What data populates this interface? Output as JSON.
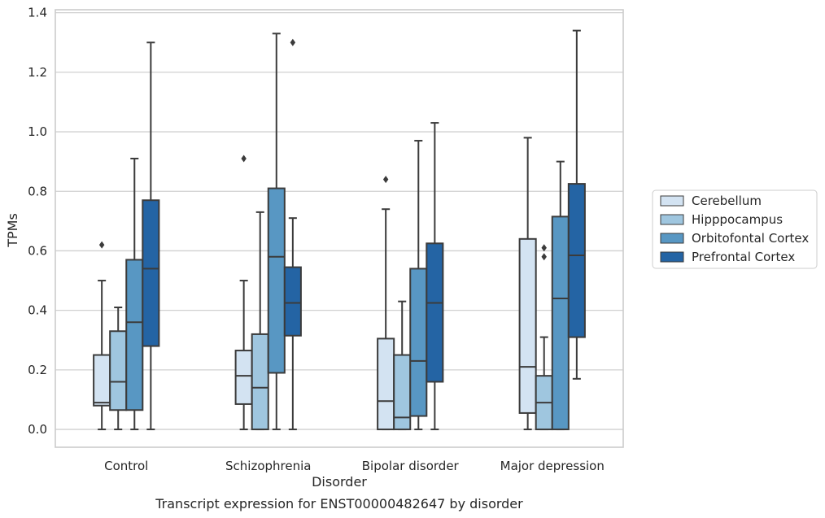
{
  "chart_data": {
    "type": "boxplot",
    "caption": "Transcript expression for ENST00000482647 by disorder",
    "xlabel": "Disorder",
    "ylabel": "TPMs",
    "ylim": [
      -0.06,
      1.41
    ],
    "yticks": [
      0.0,
      0.2,
      0.4,
      0.6,
      0.8,
      1.0,
      1.2,
      1.4
    ],
    "ytick_labels": [
      "0.0",
      "0.2",
      "0.4",
      "0.6",
      "0.8",
      "1.0",
      "1.2",
      "1.4"
    ],
    "grid": true,
    "legend_position": "right",
    "categories": [
      "Control",
      "Schizophrenia",
      "Bipolar disorder",
      "Major depression"
    ],
    "series": [
      {
        "name": "Cerebellum",
        "color": "#d3e3f2",
        "boxes": [
          {
            "whislo": 0.0,
            "q1": 0.08,
            "med": 0.09,
            "q3": 0.25,
            "whishi": 0.5,
            "fliers": [
              0.62
            ]
          },
          {
            "whislo": 0.0,
            "q1": 0.085,
            "med": 0.18,
            "q3": 0.265,
            "whishi": 0.5,
            "fliers": [
              0.91
            ]
          },
          {
            "whislo": 0.0,
            "q1": 0.0,
            "med": 0.095,
            "q3": 0.305,
            "whishi": 0.74,
            "fliers": [
              0.84
            ]
          },
          {
            "whislo": 0.0,
            "q1": 0.055,
            "med": 0.21,
            "q3": 0.64,
            "whishi": 0.98,
            "fliers": []
          }
        ]
      },
      {
        "name": "Hipppocampus",
        "color": "#9fc6df",
        "boxes": [
          {
            "whislo": 0.0,
            "q1": 0.065,
            "med": 0.16,
            "q3": 0.33,
            "whishi": 0.41,
            "fliers": []
          },
          {
            "whislo": 0.0,
            "q1": 0.0,
            "med": 0.14,
            "q3": 0.32,
            "whishi": 0.73,
            "fliers": []
          },
          {
            "whislo": 0.0,
            "q1": 0.0,
            "med": 0.04,
            "q3": 0.25,
            "whishi": 0.43,
            "fliers": []
          },
          {
            "whislo": 0.0,
            "q1": 0.0,
            "med": 0.09,
            "q3": 0.18,
            "whishi": 0.31,
            "fliers": [
              0.58,
              0.61
            ]
          }
        ]
      },
      {
        "name": "Orbitofontal Cortex",
        "color": "#5897c3",
        "boxes": [
          {
            "whislo": 0.0,
            "q1": 0.065,
            "med": 0.36,
            "q3": 0.57,
            "whishi": 0.91,
            "fliers": []
          },
          {
            "whislo": 0.0,
            "q1": 0.19,
            "med": 0.58,
            "q3": 0.81,
            "whishi": 1.33,
            "fliers": []
          },
          {
            "whislo": 0.0,
            "q1": 0.045,
            "med": 0.23,
            "q3": 0.54,
            "whishi": 0.97,
            "fliers": []
          },
          {
            "whislo": 0.0,
            "q1": 0.0,
            "med": 0.44,
            "q3": 0.715,
            "whishi": 0.9,
            "fliers": []
          }
        ]
      },
      {
        "name": "Prefrontal Cortex",
        "color": "#2464a4",
        "boxes": [
          {
            "whislo": 0.0,
            "q1": 0.28,
            "med": 0.54,
            "q3": 0.77,
            "whishi": 1.3,
            "fliers": []
          },
          {
            "whislo": 0.0,
            "q1": 0.315,
            "med": 0.425,
            "q3": 0.545,
            "whishi": 0.71,
            "fliers": [
              1.3
            ]
          },
          {
            "whislo": 0.0,
            "q1": 0.16,
            "med": 0.425,
            "q3": 0.625,
            "whishi": 1.03,
            "fliers": []
          },
          {
            "whislo": 0.17,
            "q1": 0.31,
            "med": 0.585,
            "q3": 0.825,
            "whishi": 1.34,
            "fliers": []
          }
        ]
      }
    ]
  }
}
